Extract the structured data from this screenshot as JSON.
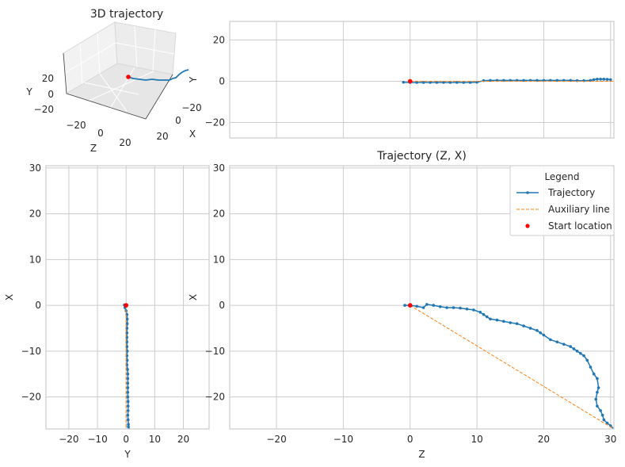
{
  "colors": {
    "trajectory": "#1f77b4",
    "auxiliary": "#ff7f0e",
    "start": "#ff0000",
    "grid": "#cccccc",
    "axes_face": "#ffffff",
    "pane": "#f2f2f2"
  },
  "chart_data": [
    {
      "panel": "3d",
      "type": "line",
      "title": "3D trajectory",
      "xlabel": "X",
      "ylabel": "Y",
      "zlabel": "Z",
      "x_ticks": [
        "−20",
        "0",
        "20"
      ],
      "y_ticks": [
        "−20",
        "0",
        "20"
      ],
      "z_ticks": [
        "−20",
        "0",
        "20"
      ],
      "grid": true
    },
    {
      "panel": "zy",
      "type": "line",
      "title": "",
      "xlabel": "",
      "ylabel": "Y",
      "xlim": [
        -27,
        30.5
      ],
      "ylim": [
        -27.5,
        29
      ],
      "x_ticks": [
        -20,
        -10,
        0,
        10,
        20,
        30
      ],
      "y_ticks": [
        {
          "v": 20,
          "label": "20"
        },
        {
          "v": 0,
          "label": "0"
        },
        {
          "v": -20,
          "label": "−20"
        }
      ],
      "show_x_tick_labels": false,
      "grid": true,
      "series": [
        {
          "name": "Trajectory",
          "style": "line-marker",
          "x": [
            -1,
            0,
            1,
            2,
            3,
            4,
            5,
            6,
            7,
            8,
            9,
            10,
            11,
            12,
            13,
            14,
            15,
            16,
            17,
            18,
            19,
            20,
            21,
            22,
            23,
            24,
            25,
            26,
            27,
            27.5,
            28,
            28.5,
            29,
            29.5,
            30
          ],
          "y": [
            -0.5,
            -0.6,
            -0.6,
            -0.6,
            -0.6,
            -0.6,
            -0.6,
            -0.6,
            -0.6,
            -0.6,
            -0.6,
            -0.5,
            0.3,
            0.4,
            0.4,
            0.4,
            0.4,
            0.4,
            0.4,
            0.4,
            0.4,
            0.4,
            0.4,
            0.4,
            0.4,
            0.4,
            0.3,
            0.3,
            0.4,
            0.8,
            1.0,
            1.0,
            1.0,
            0.9,
            0.8
          ]
        },
        {
          "name": "Auxiliary line",
          "style": "dashed",
          "x": [
            0,
            30.5
          ],
          "y": [
            0,
            0
          ]
        },
        {
          "name": "Start location",
          "style": "point",
          "x": [
            0
          ],
          "y": [
            0
          ]
        }
      ]
    },
    {
      "panel": "yx",
      "type": "line",
      "title": "",
      "xlabel": "Y",
      "ylabel": "X",
      "xlim": [
        -28,
        29
      ],
      "ylim": [
        -27,
        30.5
      ],
      "x_ticks": [
        {
          "v": -20,
          "label": "−20"
        },
        {
          "v": -10,
          "label": "−10"
        },
        {
          "v": 0,
          "label": "0"
        },
        {
          "v": 10,
          "label": "10"
        },
        {
          "v": 20,
          "label": "20"
        }
      ],
      "y_ticks": [
        {
          "v": 30,
          "label": "30"
        },
        {
          "v": 20,
          "label": "20"
        },
        {
          "v": 10,
          "label": "10"
        },
        {
          "v": 0,
          "label": "0"
        },
        {
          "v": -10,
          "label": "−10"
        },
        {
          "v": -20,
          "label": "−20"
        }
      ],
      "grid": true,
      "series": [
        {
          "name": "Trajectory",
          "style": "line-marker",
          "x": [
            -0.5,
            -0.6,
            -0.4,
            0,
            0.3,
            0.4,
            0.4,
            0.3,
            0.3,
            0.3,
            0.3,
            0.3,
            0.4,
            0.3,
            0.4,
            0.3,
            0.5,
            0.6,
            0.6,
            0.6,
            0.6,
            0.6,
            0.6,
            0.7,
            0.7,
            0.7,
            0.6,
            0.7,
            0.8,
            0.8,
            0.9
          ],
          "y": [
            0,
            0.1,
            -0.5,
            -1.2,
            -2,
            -3,
            -4,
            -5,
            -6,
            -7,
            -8,
            -9,
            -10,
            -11,
            -12,
            -13,
            -14,
            -15,
            -16,
            -17,
            -18,
            -19,
            -20,
            -21,
            -22,
            -23,
            -24,
            -25,
            -26,
            -26.5,
            -27
          ]
        },
        {
          "name": "Auxiliary line",
          "style": "dashed",
          "x": [
            0,
            0
          ],
          "y": [
            0,
            -27
          ]
        },
        {
          "name": "Start location",
          "style": "point",
          "x": [
            0
          ],
          "y": [
            0
          ]
        }
      ]
    },
    {
      "panel": "zx",
      "type": "line",
      "title": "Trajectory (Z, X)",
      "xlabel": "Z",
      "ylabel": "X",
      "xlim": [
        -27,
        30.5
      ],
      "ylim": [
        -27,
        30.5
      ],
      "x_ticks": [
        {
          "v": -20,
          "label": "−20"
        },
        {
          "v": -10,
          "label": "−10"
        },
        {
          "v": 0,
          "label": "0"
        },
        {
          "v": 10,
          "label": "10"
        },
        {
          "v": 20,
          "label": "20"
        },
        {
          "v": 30,
          "label": "30"
        }
      ],
      "y_ticks": [
        {
          "v": 30,
          "label": "30"
        },
        {
          "v": 20,
          "label": "20"
        },
        {
          "v": 10,
          "label": "10"
        },
        {
          "v": 0,
          "label": "0"
        },
        {
          "v": -10,
          "label": "−10"
        },
        {
          "v": -20,
          "label": "−20"
        }
      ],
      "grid": true,
      "legend": {
        "title": "Legend",
        "placement": "upper right",
        "entries": [
          "Trajectory",
          "Auxiliary line",
          "Start location"
        ]
      },
      "series": [
        {
          "name": "Trajectory",
          "style": "line-marker",
          "x": [
            -0.8,
            0,
            1,
            2,
            2.5,
            3.5,
            4.5,
            5.5,
            6.5,
            7.5,
            8.5,
            9.5,
            10.5,
            11,
            11.5,
            12,
            13,
            14,
            15,
            16,
            17,
            18,
            19,
            19.5,
            20,
            21,
            22,
            23,
            24,
            24.5,
            25,
            25.5,
            26,
            26.5,
            27,
            27.5,
            28,
            28.2,
            28,
            27.8,
            28,
            28.5,
            28.8,
            29,
            29.5,
            30,
            30.5
          ],
          "y": [
            0,
            0,
            -0.2,
            -0.5,
            0.2,
            0,
            -0.3,
            -0.5,
            -0.5,
            -0.6,
            -0.8,
            -1,
            -1.5,
            -2,
            -2.5,
            -3,
            -3.2,
            -3.5,
            -3.8,
            -4,
            -4.5,
            -5,
            -5.5,
            -6,
            -6.5,
            -7.5,
            -8,
            -8.5,
            -9,
            -9.5,
            -10,
            -10.5,
            -11,
            -12,
            -13.5,
            -15,
            -16,
            -18,
            -19,
            -20.5,
            -22,
            -23,
            -24,
            -25,
            -25.7,
            -26.3,
            -27
          ]
        },
        {
          "name": "Auxiliary line",
          "style": "dashed",
          "x": [
            0,
            30.5
          ],
          "y": [
            0,
            -27
          ]
        },
        {
          "name": "Start location",
          "style": "point",
          "x": [
            0
          ],
          "y": [
            0
          ]
        }
      ]
    }
  ]
}
